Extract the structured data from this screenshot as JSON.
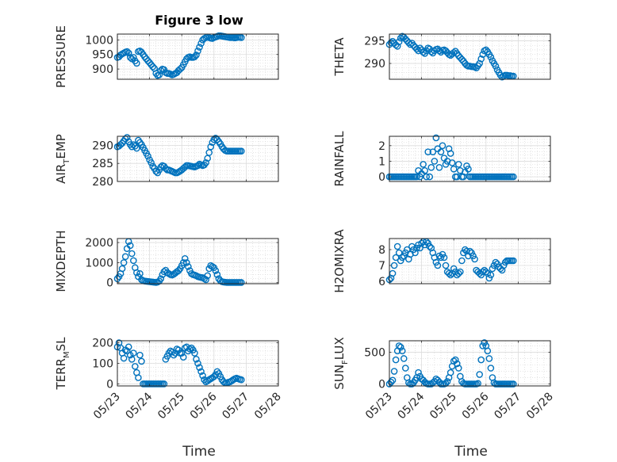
{
  "figure": {
    "title": "Figure 3 low",
    "xlabel": "Time",
    "date_ticks": [
      "05/23",
      "05/24",
      "05/25",
      "05/26",
      "05/27",
      "05/28"
    ],
    "marker_color": "#0072BD",
    "grid": true
  },
  "chart_data": [
    {
      "type": "scatter",
      "id": "pressure",
      "column": 0,
      "row": 0,
      "ylabel": "PRESSURE",
      "ylim": [
        865,
        1020
      ],
      "yticks": [
        900,
        950,
        1000
      ],
      "x": [
        0,
        0.05,
        0.1,
        0.15,
        0.2,
        0.25,
        0.3,
        0.35,
        0.4,
        0.45,
        0.5,
        0.55,
        0.6,
        0.65,
        0.7,
        0.75,
        0.8,
        0.85,
        0.9,
        0.95,
        1,
        1.05,
        1.1,
        1.15,
        1.2,
        1.25,
        1.3,
        1.35,
        1.4,
        1.45,
        1.5,
        1.55,
        1.6,
        1.65,
        1.7,
        1.75,
        1.8,
        1.85,
        1.9,
        1.95,
        2,
        2.05,
        2.1,
        2.15,
        2.2,
        2.25,
        2.3,
        2.35,
        2.4,
        2.45,
        2.5,
        2.55,
        2.6,
        2.65,
        2.7,
        2.75,
        2.8,
        2.85,
        2.9,
        2.95,
        3,
        3.05,
        3.1,
        3.15,
        3.2,
        3.25,
        3.3,
        3.35,
        3.4,
        3.45,
        3.5,
        3.55,
        3.6,
        3.65,
        3.7,
        3.75,
        3.8,
        3.85
      ],
      "y": [
        940,
        942,
        948,
        952,
        955,
        958,
        960,
        955,
        940,
        935,
        940,
        928,
        920,
        960,
        962,
        958,
        950,
        942,
        935,
        928,
        922,
        915,
        908,
        902,
        885,
        878,
        880,
        895,
        900,
        898,
        888,
        885,
        885,
        883,
        880,
        882,
        885,
        888,
        895,
        900,
        905,
        915,
        925,
        935,
        940,
        942,
        940,
        940,
        942,
        948,
        962,
        975,
        988,
        1000,
        1005,
        1008,
        1010,
        1008,
        1006,
        1005,
        1008,
        1010,
        1012,
        1014,
        1014,
        1013,
        1012,
        1011,
        1010,
        1009,
        1008,
        1008,
        1008,
        1007,
        1008,
        1009,
        1009,
        1008
      ]
    },
    {
      "type": "scatter",
      "id": "theta",
      "column": 1,
      "row": 0,
      "ylabel": "THETA",
      "ylim": [
        286.5,
        296.5
      ],
      "yticks": [
        290,
        295
      ],
      "x": [
        0,
        0.05,
        0.1,
        0.15,
        0.2,
        0.25,
        0.3,
        0.35,
        0.4,
        0.45,
        0.5,
        0.55,
        0.6,
        0.65,
        0.7,
        0.75,
        0.8,
        0.85,
        0.9,
        0.95,
        1,
        1.05,
        1.1,
        1.15,
        1.2,
        1.25,
        1.3,
        1.35,
        1.4,
        1.45,
        1.5,
        1.55,
        1.6,
        1.65,
        1.7,
        1.75,
        1.8,
        1.85,
        1.9,
        1.95,
        2,
        2.05,
        2.1,
        2.15,
        2.2,
        2.25,
        2.3,
        2.35,
        2.4,
        2.45,
        2.5,
        2.55,
        2.6,
        2.65,
        2.7,
        2.75,
        2.8,
        2.85,
        2.9,
        2.95,
        3,
        3.05,
        3.1,
        3.15,
        3.2,
        3.25,
        3.3,
        3.35,
        3.4,
        3.45,
        3.5,
        3.55,
        3.6,
        3.65,
        3.7,
        3.75,
        3.8,
        3.85
      ],
      "y": [
        294.2,
        294.6,
        294.9,
        294.5,
        294.1,
        293.8,
        294.8,
        295.6,
        296.0,
        295.8,
        295.4,
        295.0,
        294.6,
        294.2,
        294.5,
        294.0,
        293.6,
        293.2,
        292.8,
        293.4,
        293.0,
        292.5,
        292.2,
        292.8,
        293.4,
        293.2,
        292.6,
        292.3,
        292.8,
        293.1,
        293.2,
        292.8,
        292.5,
        292.9,
        293.0,
        292.8,
        292.4,
        292.0,
        291.8,
        292.1,
        292.4,
        292.7,
        292.2,
        291.7,
        291.3,
        290.9,
        290.5,
        290.0,
        289.6,
        289.4,
        289.4,
        289.3,
        289.3,
        289.2,
        289.0,
        289.5,
        290.0,
        291.0,
        292.0,
        292.8,
        293.0,
        292.6,
        292.0,
        291.4,
        290.6,
        290.0,
        289.4,
        288.6,
        288.0,
        287.4,
        287.0,
        287.2,
        287.4,
        287.4,
        287.3,
        287.3,
        287.2,
        287.2
      ]
    },
    {
      "type": "scatter",
      "id": "air-temp",
      "column": 0,
      "row": 1,
      "ylabel": "AIR_TEMP",
      "ylim": [
        280,
        292.5
      ],
      "yticks": [
        280,
        285,
        290
      ],
      "x": [
        0,
        0.05,
        0.1,
        0.15,
        0.2,
        0.25,
        0.3,
        0.35,
        0.4,
        0.45,
        0.5,
        0.55,
        0.6,
        0.65,
        0.7,
        0.75,
        0.8,
        0.85,
        0.9,
        0.95,
        1,
        1.05,
        1.1,
        1.15,
        1.2,
        1.25,
        1.3,
        1.35,
        1.4,
        1.45,
        1.5,
        1.55,
        1.6,
        1.65,
        1.7,
        1.75,
        1.8,
        1.85,
        1.9,
        1.95,
        2,
        2.05,
        2.1,
        2.15,
        2.2,
        2.25,
        2.3,
        2.35,
        2.4,
        2.45,
        2.5,
        2.55,
        2.6,
        2.65,
        2.7,
        2.75,
        2.8,
        2.85,
        2.9,
        2.95,
        3,
        3.05,
        3.1,
        3.15,
        3.2,
        3.25,
        3.3,
        3.35,
        3.4,
        3.45,
        3.5,
        3.55,
        3.6,
        3.65,
        3.7,
        3.75,
        3.8,
        3.85
      ],
      "y": [
        289.6,
        289.8,
        290.2,
        290.6,
        291.2,
        291.8,
        292.2,
        291.0,
        290.2,
        289.6,
        290.2,
        289.8,
        289.2,
        291.4,
        290.8,
        290.2,
        289.4,
        288.6,
        287.8,
        287.0,
        286.0,
        285.2,
        284.2,
        283.6,
        282.8,
        282.4,
        283.2,
        284.0,
        284.4,
        284.2,
        283.6,
        283.2,
        283.2,
        283.0,
        282.8,
        282.6,
        282.4,
        282.4,
        282.6,
        282.9,
        283.2,
        283.6,
        284.0,
        284.4,
        284.4,
        284.3,
        284.2,
        284.1,
        284.0,
        284.2,
        284.4,
        284.8,
        284.6,
        284.4,
        284.6,
        285.2,
        286.4,
        288.0,
        289.6,
        290.8,
        291.6,
        292.0,
        291.6,
        291.0,
        290.4,
        289.6,
        289.0,
        288.6,
        288.4,
        288.4,
        288.4,
        288.4,
        288.4,
        288.4,
        288.4,
        288.4,
        288.4,
        288.4
      ]
    },
    {
      "type": "scatter",
      "id": "rainfall",
      "column": 1,
      "row": 1,
      "ylabel": "RAINFALL",
      "ylim": [
        -0.3,
        2.6
      ],
      "yticks": [
        0,
        1,
        2
      ],
      "x": [
        0,
        0.05,
        0.1,
        0.15,
        0.2,
        0.25,
        0.3,
        0.35,
        0.4,
        0.45,
        0.5,
        0.55,
        0.6,
        0.65,
        0.7,
        0.75,
        0.8,
        0.85,
        0.9,
        0.95,
        1,
        1.05,
        1.1,
        1.15,
        1.2,
        1.25,
        1.3,
        1.35,
        1.4,
        1.45,
        1.5,
        1.55,
        1.6,
        1.65,
        1.7,
        1.75,
        1.8,
        1.85,
        1.9,
        1.95,
        2,
        2.05,
        2.1,
        2.15,
        2.2,
        2.25,
        2.3,
        2.35,
        2.4,
        2.45,
        2.5,
        2.55,
        2.6,
        2.65,
        2.7,
        2.75,
        2.8,
        2.85,
        2.9,
        2.95,
        3,
        3.05,
        3.1,
        3.15,
        3.2,
        3.25,
        3.3,
        3.35,
        3.4,
        3.45,
        3.5,
        3.55,
        3.6,
        3.65,
        3.7,
        3.75,
        3.8,
        3.85
      ],
      "y": [
        0,
        0,
        0,
        0,
        0,
        0,
        0,
        0,
        0,
        0,
        0,
        0,
        0,
        0,
        0,
        0,
        0,
        0,
        0.4,
        0,
        0.2,
        0.8,
        0.4,
        0,
        1.6,
        0,
        0.6,
        1.6,
        1.0,
        2.5,
        1.8,
        0.6,
        1.6,
        2.0,
        1.2,
        0.8,
        1.0,
        1.8,
        1.5,
        0.9,
        0.5,
        0,
        0,
        0.8,
        0.4,
        0,
        0,
        0.3,
        0.7,
        0.5,
        0,
        0,
        0,
        0,
        0,
        0,
        0,
        0,
        0,
        0,
        0,
        0,
        0,
        0,
        0,
        0,
        0,
        0,
        0,
        0,
        0,
        0,
        0,
        0,
        0,
        0,
        0,
        0
      ]
    },
    {
      "type": "scatter",
      "id": "mixdepth",
      "column": 0,
      "row": 2,
      "ylabel": "MIXDEPTH",
      "ylim": [
        -50,
        2200
      ],
      "yticks": [
        0,
        1000,
        2000
      ],
      "x": [
        0,
        0.05,
        0.1,
        0.15,
        0.2,
        0.25,
        0.3,
        0.35,
        0.4,
        0.45,
        0.5,
        0.55,
        0.6,
        0.65,
        0.7,
        0.75,
        0.8,
        0.85,
        0.9,
        0.95,
        1,
        1.05,
        1.1,
        1.15,
        1.2,
        1.25,
        1.3,
        1.35,
        1.4,
        1.45,
        1.5,
        1.55,
        1.6,
        1.65,
        1.7,
        1.75,
        1.8,
        1.85,
        1.9,
        1.95,
        2,
        2.05,
        2.1,
        2.15,
        2.2,
        2.25,
        2.3,
        2.35,
        2.4,
        2.45,
        2.5,
        2.55,
        2.6,
        2.65,
        2.7,
        2.75,
        2.8,
        2.85,
        2.9,
        2.95,
        3,
        3.05,
        3.1,
        3.15,
        3.2,
        3.25,
        3.3,
        3.35,
        3.4,
        3.45,
        3.5,
        3.55,
        3.6,
        3.65,
        3.7,
        3.75,
        3.8,
        3.85
      ],
      "y": [
        200,
        300,
        450,
        700,
        1000,
        1300,
        1700,
        2050,
        1850,
        1450,
        1100,
        750,
        500,
        300,
        450,
        150,
        100,
        80,
        70,
        60,
        50,
        40,
        30,
        20,
        10,
        30,
        80,
        200,
        400,
        550,
        620,
        500,
        450,
        400,
        380,
        420,
        480,
        550,
        600,
        700,
        850,
        1000,
        1200,
        1000,
        800,
        600,
        450,
        400,
        380,
        350,
        300,
        280,
        260,
        250,
        200,
        150,
        350,
        700,
        850,
        800,
        750,
        600,
        400,
        200,
        100,
        50,
        30,
        20,
        10,
        10,
        10,
        10,
        10,
        10,
        10,
        10,
        10,
        10
      ]
    },
    {
      "type": "scatter",
      "id": "h2omixra",
      "column": 1,
      "row": 2,
      "ylabel": "H2OMIXRA",
      "ylim": [
        5.85,
        8.7
      ],
      "yticks": [
        6,
        7,
        8
      ],
      "x": [
        0,
        0.05,
        0.1,
        0.15,
        0.2,
        0.25,
        0.3,
        0.35,
        0.4,
        0.45,
        0.5,
        0.55,
        0.6,
        0.65,
        0.7,
        0.75,
        0.8,
        0.85,
        0.9,
        0.95,
        1,
        1.05,
        1.1,
        1.15,
        1.2,
        1.25,
        1.3,
        1.35,
        1.4,
        1.45,
        1.5,
        1.55,
        1.6,
        1.65,
        1.7,
        1.75,
        1.8,
        1.85,
        1.9,
        1.95,
        2,
        2.05,
        2.1,
        2.15,
        2.2,
        2.25,
        2.3,
        2.35,
        2.4,
        2.45,
        2.5,
        2.55,
        2.6,
        2.65,
        2.7,
        2.75,
        2.8,
        2.85,
        2.9,
        2.95,
        3,
        3.05,
        3.1,
        3.15,
        3.2,
        3.25,
        3.3,
        3.35,
        3.4,
        3.45,
        3.5,
        3.55,
        3.6,
        3.65,
        3.7,
        3.75,
        3.8,
        3.85
      ],
      "y": [
        6.1,
        6.2,
        6.5,
        7.0,
        7.5,
        8.2,
        7.8,
        7.3,
        7.5,
        7.6,
        7.8,
        8.0,
        7.4,
        7.7,
        8.2,
        8.0,
        7.8,
        8.1,
        8.3,
        8.1,
        8.4,
        8.5,
        8.3,
        8.5,
        8.4,
        8.2,
        8.1,
        7.8,
        7.5,
        7.2,
        7.0,
        7.6,
        7.5,
        7.7,
        7.5,
        7.0,
        6.6,
        6.5,
        6.4,
        6.5,
        6.8,
        6.6,
        6.4,
        6.5,
        6.6,
        7.3,
        7.8,
        8.0,
        7.9,
        7.6,
        7.9,
        7.8,
        7.6,
        7.4,
        6.7,
        6.6,
        6.5,
        6.4,
        6.6,
        6.7,
        6.6,
        6.5,
        6.2,
        6.4,
        6.8,
        7.0,
        7.2,
        7.1,
        6.9,
        6.8,
        6.7,
        7.0,
        7.2,
        7.3,
        7.3,
        7.3,
        7.3,
        7.3
      ]
    },
    {
      "type": "scatter",
      "id": "terr-msl",
      "column": 0,
      "row": 3,
      "ylabel": "TERR_MSL",
      "ylim": [
        -10,
        210
      ],
      "yticks": [
        0,
        100,
        200
      ],
      "x": [
        0,
        0.05,
        0.1,
        0.15,
        0.2,
        0.25,
        0.3,
        0.35,
        0.4,
        0.45,
        0.5,
        0.55,
        0.6,
        0.65,
        0.7,
        0.75,
        0.8,
        0.85,
        0.9,
        0.95,
        1,
        1.05,
        1.1,
        1.15,
        1.2,
        1.25,
        1.3,
        1.35,
        1.4,
        1.45,
        1.5,
        1.55,
        1.6,
        1.65,
        1.7,
        1.75,
        1.8,
        1.85,
        1.9,
        1.95,
        2,
        2.05,
        2.1,
        2.15,
        2.2,
        2.25,
        2.3,
        2.35,
        2.4,
        2.45,
        2.5,
        2.55,
        2.6,
        2.65,
        2.7,
        2.75,
        2.8,
        2.85,
        2.9,
        2.95,
        3,
        3.05,
        3.1,
        3.15,
        3.2,
        3.25,
        3.3,
        3.35,
        3.4,
        3.45,
        3.5,
        3.55,
        3.6,
        3.65,
        3.7,
        3.75,
        3.8,
        3.85
      ],
      "y": [
        180,
        200,
        175,
        150,
        125,
        165,
        160,
        180,
        140,
        120,
        150,
        85,
        55,
        30,
        140,
        110,
        0,
        0,
        0,
        0,
        0,
        0,
        0,
        0,
        0,
        0,
        0,
        0,
        0,
        0,
        120,
        135,
        150,
        160,
        155,
        140,
        150,
        170,
        165,
        150,
        150,
        130,
        175,
        180,
        160,
        170,
        175,
        165,
        150,
        120,
        100,
        80,
        60,
        40,
        20,
        10,
        15,
        20,
        25,
        30,
        35,
        45,
        60,
        50,
        35,
        20,
        10,
        5,
        5,
        8,
        10,
        15,
        20,
        25,
        28,
        25,
        22,
        20
      ]
    },
    {
      "type": "scatter",
      "id": "sun-flux",
      "column": 1,
      "row": 3,
      "ylabel": "SUN_FLUX",
      "ylim": [
        -30,
        680
      ],
      "yticks": [
        0,
        500
      ],
      "x": [
        0,
        0.05,
        0.1,
        0.15,
        0.2,
        0.25,
        0.3,
        0.35,
        0.4,
        0.45,
        0.5,
        0.55,
        0.6,
        0.65,
        0.7,
        0.75,
        0.8,
        0.85,
        0.9,
        0.95,
        1,
        1.05,
        1.1,
        1.15,
        1.2,
        1.25,
        1.3,
        1.35,
        1.4,
        1.45,
        1.5,
        1.55,
        1.6,
        1.65,
        1.7,
        1.75,
        1.8,
        1.85,
        1.9,
        1.95,
        2,
        2.05,
        2.1,
        2.15,
        2.2,
        2.25,
        2.3,
        2.35,
        2.4,
        2.45,
        2.5,
        2.55,
        2.6,
        2.65,
        2.7,
        2.75,
        2.8,
        2.85,
        2.9,
        2.95,
        3,
        3.05,
        3.1,
        3.15,
        3.2,
        3.25,
        3.3,
        3.35,
        3.4,
        3.45,
        3.5,
        3.55,
        3.6,
        3.65,
        3.7,
        3.75,
        3.8,
        3.85
      ],
      "y": [
        0,
        30,
        60,
        200,
        380,
        520,
        600,
        580,
        520,
        400,
        250,
        100,
        20,
        0,
        0,
        20,
        60,
        100,
        180,
        120,
        80,
        60,
        30,
        10,
        0,
        0,
        0,
        20,
        40,
        80,
        60,
        30,
        0,
        0,
        0,
        10,
        40,
        100,
        180,
        280,
        360,
        380,
        320,
        250,
        120,
        40,
        10,
        0,
        0,
        0,
        0,
        0,
        0,
        0,
        0,
        10,
        150,
        380,
        600,
        650,
        600,
        520,
        400,
        250,
        100,
        20,
        0,
        0,
        0,
        0,
        0,
        0,
        0,
        0,
        0,
        0,
        0,
        0
      ]
    }
  ]
}
